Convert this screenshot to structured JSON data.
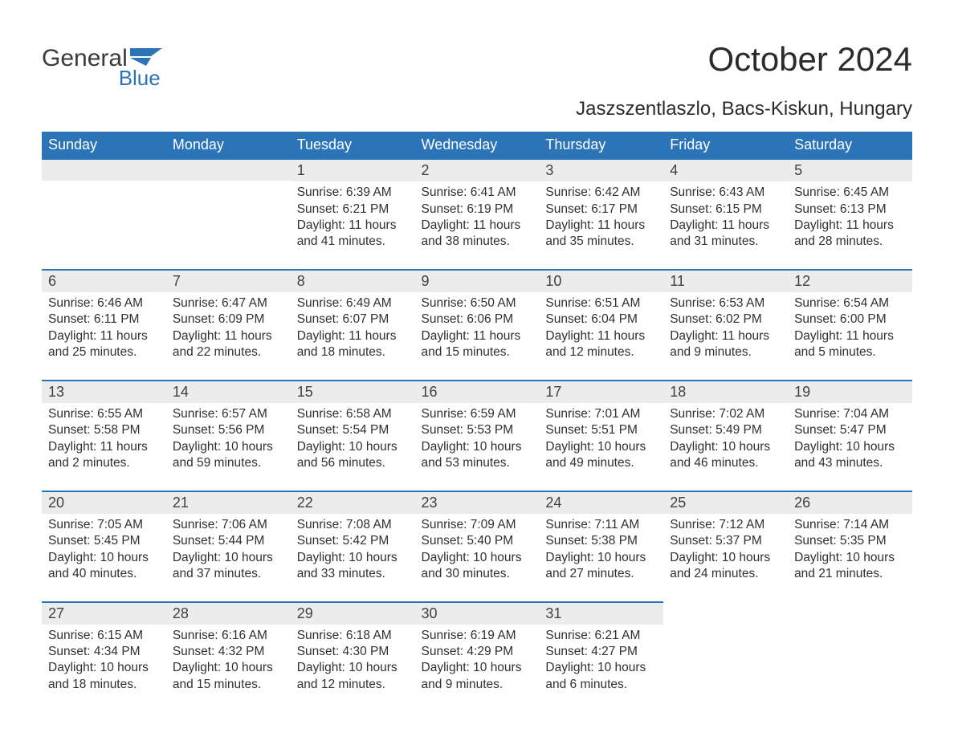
{
  "logo": {
    "line1": "General",
    "line2": "Blue"
  },
  "title": "October 2024",
  "location": "Jaszszentlaszlo, Bacs-Kiskun, Hungary",
  "colors": {
    "header_bg": "#2c74b8",
    "header_text": "#ffffff",
    "day_bg": "#ececec",
    "row_border": "#2c74b8",
    "text": "#303030",
    "logo_gray": "#3a3a3a",
    "logo_blue": "#2c74b8",
    "page_bg": "#ffffff"
  },
  "typography": {
    "title_fontsize": 42,
    "location_fontsize": 24,
    "header_fontsize": 18,
    "daynum_fontsize": 18,
    "cell_fontsize": 15.5,
    "logo_line1_fontsize": 30,
    "logo_line2_fontsize": 26
  },
  "layout": {
    "columns": 7,
    "rows": 5,
    "cell_padding_bottom": 24
  },
  "weekdays": [
    "Sunday",
    "Monday",
    "Tuesday",
    "Wednesday",
    "Thursday",
    "Friday",
    "Saturday"
  ],
  "weeks": [
    [
      null,
      null,
      {
        "day": "1",
        "sunrise": "Sunrise: 6:39 AM",
        "sunset": "Sunset: 6:21 PM",
        "d1": "Daylight: 11 hours",
        "d2": "and 41 minutes."
      },
      {
        "day": "2",
        "sunrise": "Sunrise: 6:41 AM",
        "sunset": "Sunset: 6:19 PM",
        "d1": "Daylight: 11 hours",
        "d2": "and 38 minutes."
      },
      {
        "day": "3",
        "sunrise": "Sunrise: 6:42 AM",
        "sunset": "Sunset: 6:17 PM",
        "d1": "Daylight: 11 hours",
        "d2": "and 35 minutes."
      },
      {
        "day": "4",
        "sunrise": "Sunrise: 6:43 AM",
        "sunset": "Sunset: 6:15 PM",
        "d1": "Daylight: 11 hours",
        "d2": "and 31 minutes."
      },
      {
        "day": "5",
        "sunrise": "Sunrise: 6:45 AM",
        "sunset": "Sunset: 6:13 PM",
        "d1": "Daylight: 11 hours",
        "d2": "and 28 minutes."
      }
    ],
    [
      {
        "day": "6",
        "sunrise": "Sunrise: 6:46 AM",
        "sunset": "Sunset: 6:11 PM",
        "d1": "Daylight: 11 hours",
        "d2": "and 25 minutes."
      },
      {
        "day": "7",
        "sunrise": "Sunrise: 6:47 AM",
        "sunset": "Sunset: 6:09 PM",
        "d1": "Daylight: 11 hours",
        "d2": "and 22 minutes."
      },
      {
        "day": "8",
        "sunrise": "Sunrise: 6:49 AM",
        "sunset": "Sunset: 6:07 PM",
        "d1": "Daylight: 11 hours",
        "d2": "and 18 minutes."
      },
      {
        "day": "9",
        "sunrise": "Sunrise: 6:50 AM",
        "sunset": "Sunset: 6:06 PM",
        "d1": "Daylight: 11 hours",
        "d2": "and 15 minutes."
      },
      {
        "day": "10",
        "sunrise": "Sunrise: 6:51 AM",
        "sunset": "Sunset: 6:04 PM",
        "d1": "Daylight: 11 hours",
        "d2": "and 12 minutes."
      },
      {
        "day": "11",
        "sunrise": "Sunrise: 6:53 AM",
        "sunset": "Sunset: 6:02 PM",
        "d1": "Daylight: 11 hours",
        "d2": "and 9 minutes."
      },
      {
        "day": "12",
        "sunrise": "Sunrise: 6:54 AM",
        "sunset": "Sunset: 6:00 PM",
        "d1": "Daylight: 11 hours",
        "d2": "and 5 minutes."
      }
    ],
    [
      {
        "day": "13",
        "sunrise": "Sunrise: 6:55 AM",
        "sunset": "Sunset: 5:58 PM",
        "d1": "Daylight: 11 hours",
        "d2": "and 2 minutes."
      },
      {
        "day": "14",
        "sunrise": "Sunrise: 6:57 AM",
        "sunset": "Sunset: 5:56 PM",
        "d1": "Daylight: 10 hours",
        "d2": "and 59 minutes."
      },
      {
        "day": "15",
        "sunrise": "Sunrise: 6:58 AM",
        "sunset": "Sunset: 5:54 PM",
        "d1": "Daylight: 10 hours",
        "d2": "and 56 minutes."
      },
      {
        "day": "16",
        "sunrise": "Sunrise: 6:59 AM",
        "sunset": "Sunset: 5:53 PM",
        "d1": "Daylight: 10 hours",
        "d2": "and 53 minutes."
      },
      {
        "day": "17",
        "sunrise": "Sunrise: 7:01 AM",
        "sunset": "Sunset: 5:51 PM",
        "d1": "Daylight: 10 hours",
        "d2": "and 49 minutes."
      },
      {
        "day": "18",
        "sunrise": "Sunrise: 7:02 AM",
        "sunset": "Sunset: 5:49 PM",
        "d1": "Daylight: 10 hours",
        "d2": "and 46 minutes."
      },
      {
        "day": "19",
        "sunrise": "Sunrise: 7:04 AM",
        "sunset": "Sunset: 5:47 PM",
        "d1": "Daylight: 10 hours",
        "d2": "and 43 minutes."
      }
    ],
    [
      {
        "day": "20",
        "sunrise": "Sunrise: 7:05 AM",
        "sunset": "Sunset: 5:45 PM",
        "d1": "Daylight: 10 hours",
        "d2": "and 40 minutes."
      },
      {
        "day": "21",
        "sunrise": "Sunrise: 7:06 AM",
        "sunset": "Sunset: 5:44 PM",
        "d1": "Daylight: 10 hours",
        "d2": "and 37 minutes."
      },
      {
        "day": "22",
        "sunrise": "Sunrise: 7:08 AM",
        "sunset": "Sunset: 5:42 PM",
        "d1": "Daylight: 10 hours",
        "d2": "and 33 minutes."
      },
      {
        "day": "23",
        "sunrise": "Sunrise: 7:09 AM",
        "sunset": "Sunset: 5:40 PM",
        "d1": "Daylight: 10 hours",
        "d2": "and 30 minutes."
      },
      {
        "day": "24",
        "sunrise": "Sunrise: 7:11 AM",
        "sunset": "Sunset: 5:38 PM",
        "d1": "Daylight: 10 hours",
        "d2": "and 27 minutes."
      },
      {
        "day": "25",
        "sunrise": "Sunrise: 7:12 AM",
        "sunset": "Sunset: 5:37 PM",
        "d1": "Daylight: 10 hours",
        "d2": "and 24 minutes."
      },
      {
        "day": "26",
        "sunrise": "Sunrise: 7:14 AM",
        "sunset": "Sunset: 5:35 PM",
        "d1": "Daylight: 10 hours",
        "d2": "and 21 minutes."
      }
    ],
    [
      {
        "day": "27",
        "sunrise": "Sunrise: 6:15 AM",
        "sunset": "Sunset: 4:34 PM",
        "d1": "Daylight: 10 hours",
        "d2": "and 18 minutes."
      },
      {
        "day": "28",
        "sunrise": "Sunrise: 6:16 AM",
        "sunset": "Sunset: 4:32 PM",
        "d1": "Daylight: 10 hours",
        "d2": "and 15 minutes."
      },
      {
        "day": "29",
        "sunrise": "Sunrise: 6:18 AM",
        "sunset": "Sunset: 4:30 PM",
        "d1": "Daylight: 10 hours",
        "d2": "and 12 minutes."
      },
      {
        "day": "30",
        "sunrise": "Sunrise: 6:19 AM",
        "sunset": "Sunset: 4:29 PM",
        "d1": "Daylight: 10 hours",
        "d2": "and 9 minutes."
      },
      {
        "day": "31",
        "sunrise": "Sunrise: 6:21 AM",
        "sunset": "Sunset: 4:27 PM",
        "d1": "Daylight: 10 hours",
        "d2": "and 6 minutes."
      },
      null,
      null
    ]
  ]
}
